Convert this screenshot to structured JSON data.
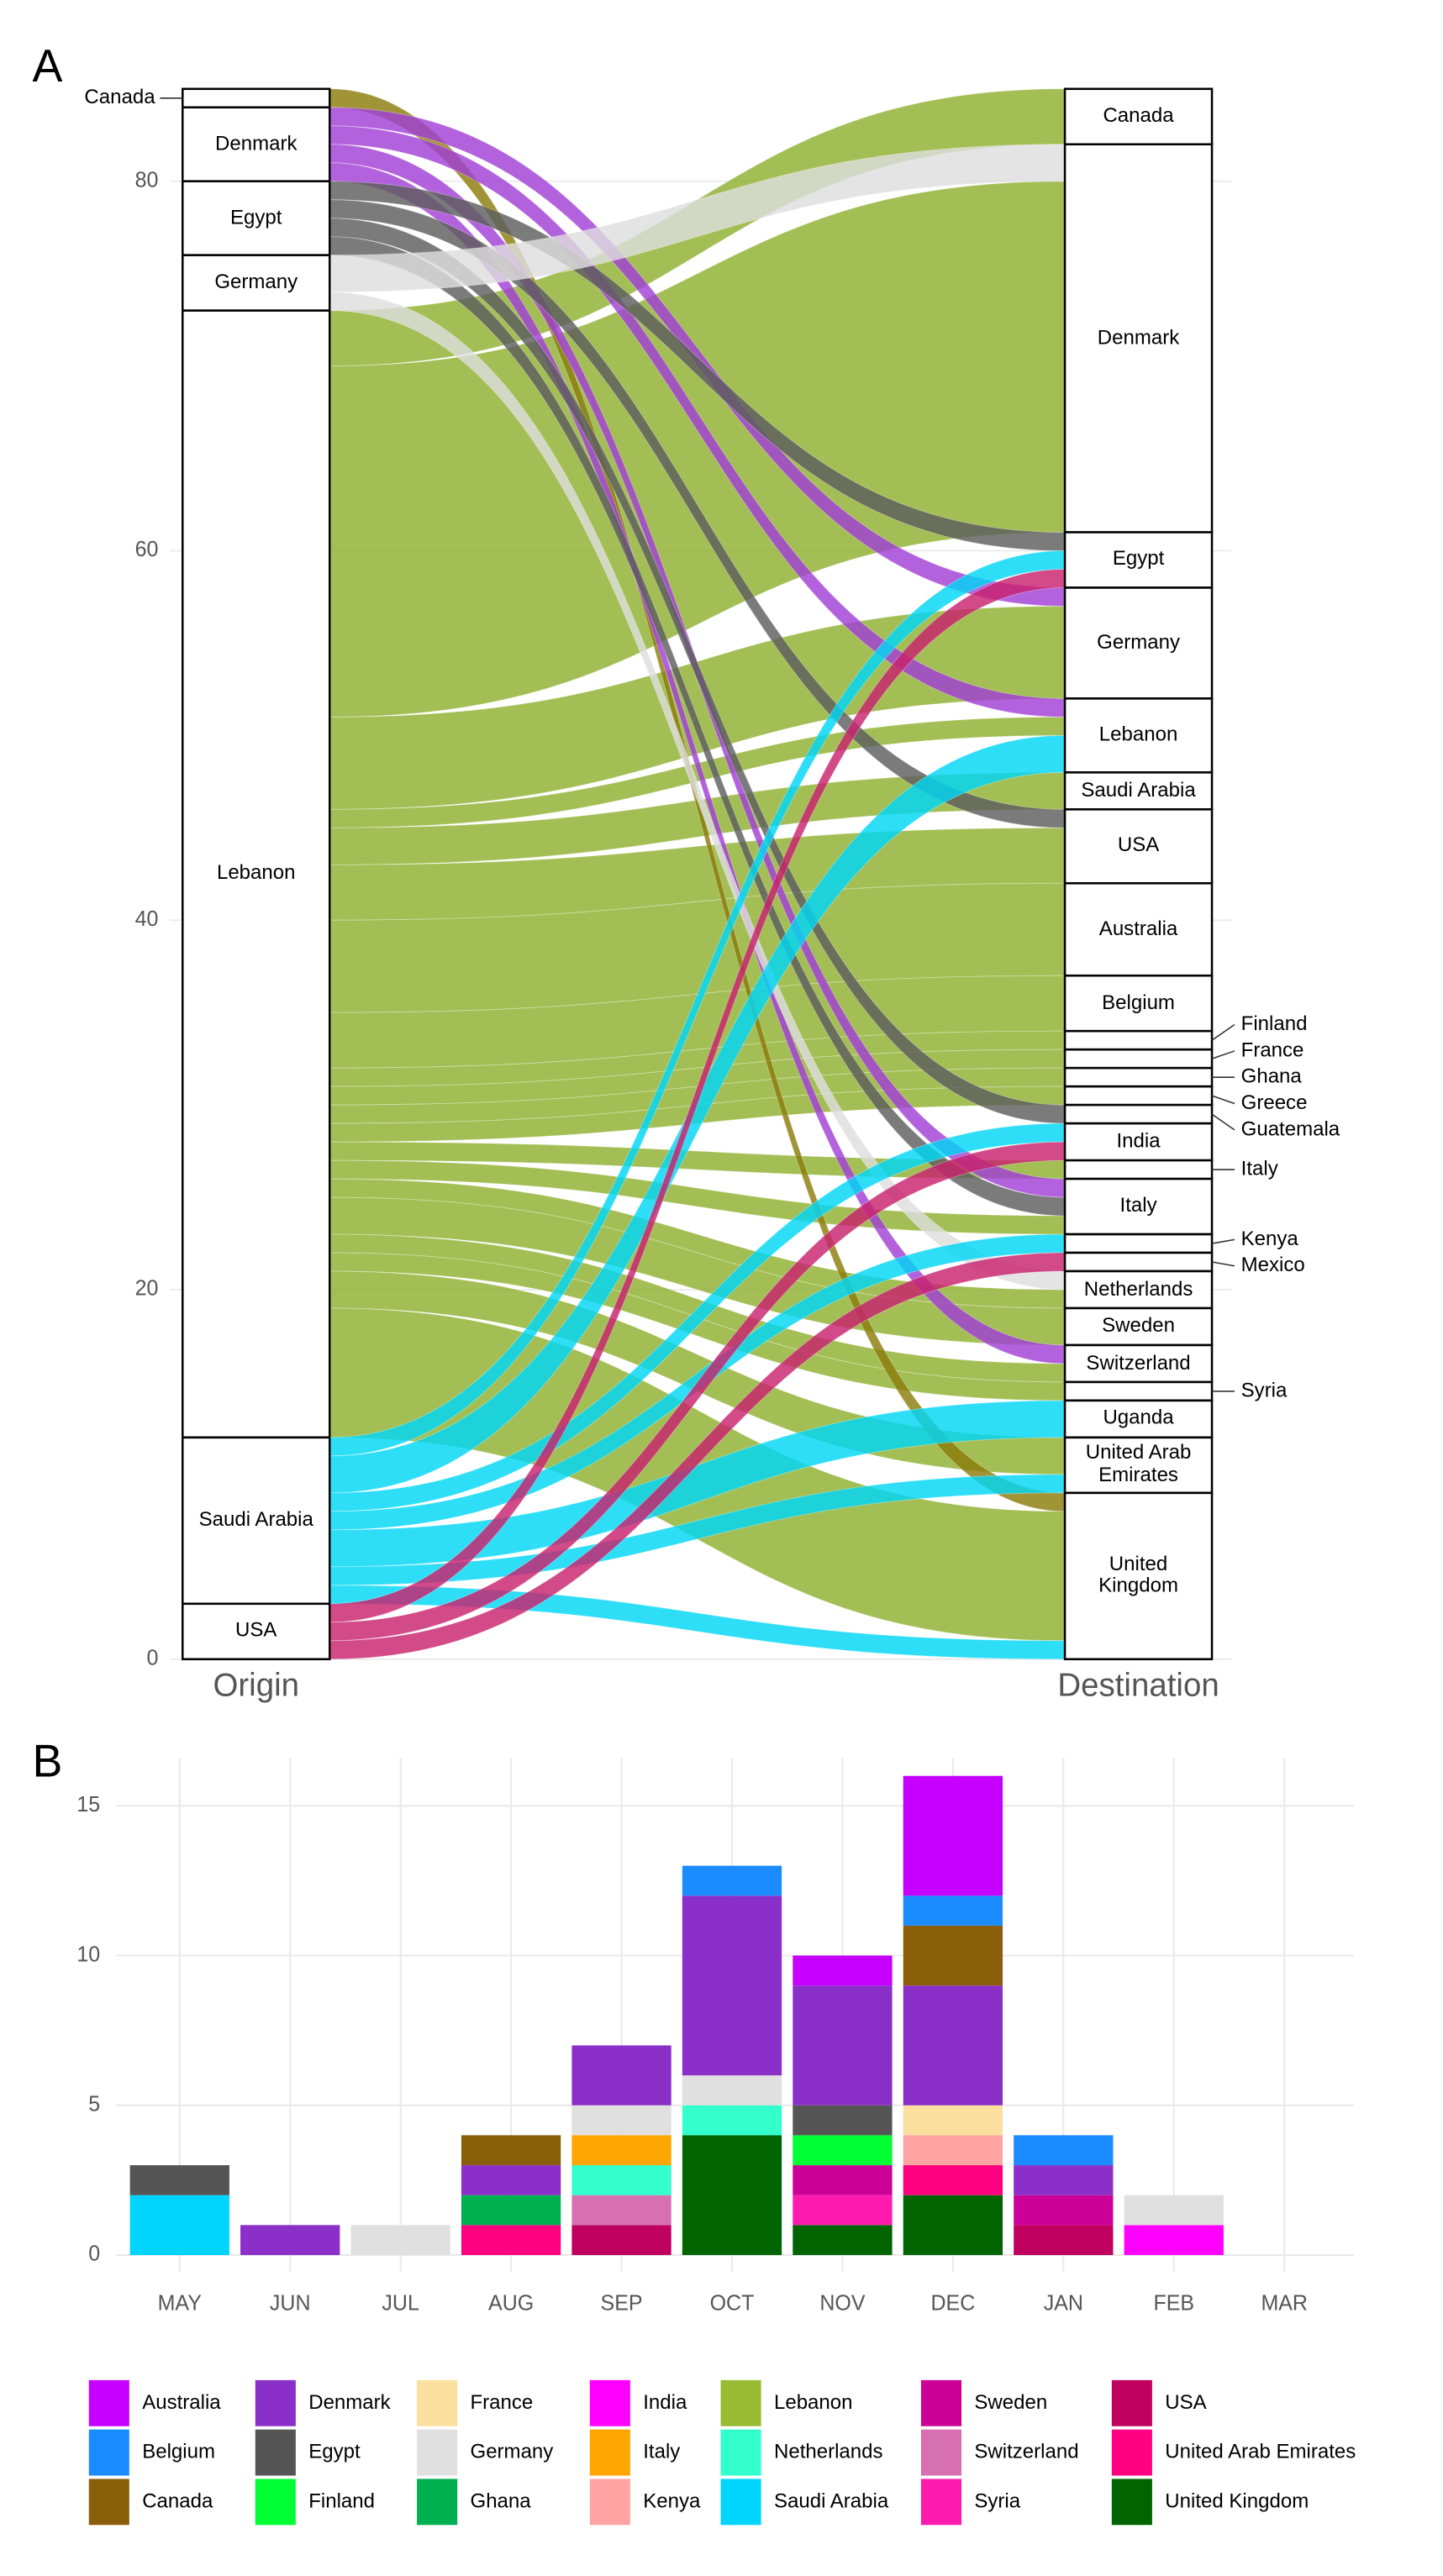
{
  "chart_data": [
    {
      "type": "alluvial",
      "panel": "A",
      "origin_label": "Origin",
      "destination_label": "Destination",
      "ylim": [
        0,
        85
      ],
      "yticks": [
        0,
        20,
        40,
        60,
        80
      ],
      "grid": true,
      "origin": [
        {
          "name": "Canada",
          "count": 1,
          "color": "#8b7d0b"
        },
        {
          "name": "Denmark",
          "count": 4,
          "color": "#a13fd4"
        },
        {
          "name": "Egypt",
          "count": 4,
          "color": "#5e5e5e"
        },
        {
          "name": "Germany",
          "count": 3,
          "color": "#dedede"
        },
        {
          "name": "Lebanon",
          "count": 61,
          "color": "#8fb02e"
        },
        {
          "name": "Saudi Arabia",
          "count": 9,
          "color": "#00d7f5"
        },
        {
          "name": "USA",
          "count": 3,
          "color": "#c8226e"
        }
      ],
      "destination": [
        {
          "name": "Canada",
          "count": 3
        },
        {
          "name": "Denmark",
          "count": 21
        },
        {
          "name": "Egypt",
          "count": 3
        },
        {
          "name": "Germany",
          "count": 6
        },
        {
          "name": "Lebanon",
          "count": 4
        },
        {
          "name": "Saudi Arabia",
          "count": 2
        },
        {
          "name": "USA",
          "count": 4
        },
        {
          "name": "Australia",
          "count": 5
        },
        {
          "name": "Belgium",
          "count": 3
        },
        {
          "name": "Finland",
          "count": 1
        },
        {
          "name": "France",
          "count": 1
        },
        {
          "name": "Ghana",
          "count": 1
        },
        {
          "name": "Greece",
          "count": 1
        },
        {
          "name": "Guatemala",
          "count": 1
        },
        {
          "name": "India",
          "count": 2
        },
        {
          "name": "Italy",
          "count": 1
        },
        {
          "name": "Italy",
          "count": 3
        },
        {
          "name": "Kenya",
          "count": 1
        },
        {
          "name": "Mexico",
          "count": 1
        },
        {
          "name": "Netherlands",
          "count": 2
        },
        {
          "name": "Sweden",
          "count": 2
        },
        {
          "name": "Switzerland",
          "count": 2
        },
        {
          "name": "Syria",
          "count": 1
        },
        {
          "name": "Uganda",
          "count": 2
        },
        {
          "name": "United Arab Emirates",
          "count": 3
        },
        {
          "name": "United Kingdom",
          "count": 9
        }
      ],
      "flows": [
        {
          "from": 0,
          "to": 25,
          "value": 1
        },
        {
          "from": 1,
          "to": 3,
          "value": 1
        },
        {
          "from": 1,
          "to": 4,
          "value": 1
        },
        {
          "from": 1,
          "to": 16,
          "value": 1
        },
        {
          "from": 1,
          "to": 21,
          "value": 1
        },
        {
          "from": 2,
          "to": 2,
          "value": 1
        },
        {
          "from": 2,
          "to": 6,
          "value": 1
        },
        {
          "from": 2,
          "to": 13,
          "value": 1
        },
        {
          "from": 2,
          "to": 16,
          "value": 1
        },
        {
          "from": 3,
          "to": 1,
          "value": 2
        },
        {
          "from": 3,
          "to": 19,
          "value": 1
        },
        {
          "from": 4,
          "to": 0,
          "value": 3
        },
        {
          "from": 4,
          "to": 1,
          "value": 19
        },
        {
          "from": 4,
          "to": 3,
          "value": 5
        },
        {
          "from": 4,
          "to": 4,
          "value": 1
        },
        {
          "from": 4,
          "to": 5,
          "value": 2
        },
        {
          "from": 4,
          "to": 6,
          "value": 3
        },
        {
          "from": 4,
          "to": 7,
          "value": 5
        },
        {
          "from": 4,
          "to": 8,
          "value": 3
        },
        {
          "from": 4,
          "to": 9,
          "value": 1
        },
        {
          "from": 4,
          "to": 10,
          "value": 1
        },
        {
          "from": 4,
          "to": 11,
          "value": 1
        },
        {
          "from": 4,
          "to": 12,
          "value": 1
        },
        {
          "from": 4,
          "to": 15,
          "value": 1
        },
        {
          "from": 4,
          "to": 16,
          "value": 1
        },
        {
          "from": 4,
          "to": 19,
          "value": 1
        },
        {
          "from": 4,
          "to": 20,
          "value": 2
        },
        {
          "from": 4,
          "to": 21,
          "value": 1
        },
        {
          "from": 4,
          "to": 22,
          "value": 1
        },
        {
          "from": 4,
          "to": 24,
          "value": 2
        },
        {
          "from": 4,
          "to": 25,
          "value": 7
        },
        {
          "from": 5,
          "to": 2,
          "value": 1
        },
        {
          "from": 5,
          "to": 4,
          "value": 2
        },
        {
          "from": 5,
          "to": 14,
          "value": 1
        },
        {
          "from": 5,
          "to": 17,
          "value": 1
        },
        {
          "from": 5,
          "to": 23,
          "value": 2
        },
        {
          "from": 5,
          "to": 24,
          "value": 1
        },
        {
          "from": 5,
          "to": 25,
          "value": 1
        },
        {
          "from": 6,
          "to": 2,
          "value": 1
        },
        {
          "from": 6,
          "to": 14,
          "value": 1
        },
        {
          "from": 6,
          "to": 18,
          "value": 1
        }
      ]
    },
    {
      "type": "bar",
      "stacked": true,
      "panel": "B",
      "categories": [
        "MAY",
        "JUN",
        "JUL",
        "AUG",
        "SEP",
        "OCT",
        "NOV",
        "DEC",
        "JAN",
        "FEB",
        "MAR"
      ],
      "ylim": [
        0,
        16.6
      ],
      "yticks": [
        0,
        5,
        10,
        15
      ],
      "grid": true,
      "legend": "bottom",
      "series": [
        {
          "name": "Australia",
          "color": "#c600ff",
          "values": [
            0,
            0,
            0,
            0,
            0,
            0,
            1,
            4,
            0,
            0,
            0
          ]
        },
        {
          "name": "Belgium",
          "color": "#1a8cff",
          "values": [
            0,
            0,
            0,
            0,
            0,
            1,
            0,
            1,
            1,
            0,
            0
          ]
        },
        {
          "name": "Canada",
          "color": "#8b5e0a",
          "values": [
            0,
            0,
            0,
            1,
            0,
            0,
            0,
            2,
            0,
            0,
            0
          ]
        },
        {
          "name": "Denmark",
          "color": "#8b2fc9",
          "values": [
            0,
            1,
            0,
            1,
            2,
            6,
            4,
            4,
            1,
            0,
            0
          ]
        },
        {
          "name": "Egypt",
          "color": "#555555",
          "values": [
            1,
            0,
            0,
            0,
            0,
            0,
            1,
            0,
            0,
            0,
            0
          ]
        },
        {
          "name": "Finland",
          "color": "#00ff33",
          "values": [
            0,
            0,
            0,
            0,
            0,
            0,
            1,
            0,
            0,
            0,
            0
          ]
        },
        {
          "name": "France",
          "color": "#fbdf9f",
          "values": [
            0,
            0,
            0,
            0,
            0,
            0,
            0,
            1,
            0,
            0,
            0
          ]
        },
        {
          "name": "Germany",
          "color": "#e0e0e0",
          "values": [
            0,
            0,
            1,
            0,
            1,
            1,
            0,
            0,
            0,
            1,
            0
          ]
        },
        {
          "name": "Ghana",
          "color": "#00b050",
          "values": [
            0,
            0,
            0,
            1,
            0,
            0,
            0,
            0,
            0,
            0,
            0
          ]
        },
        {
          "name": "India",
          "color": "#ff00ff",
          "values": [
            0,
            0,
            0,
            0,
            0,
            0,
            0,
            0,
            0,
            1,
            0
          ]
        },
        {
          "name": "Italy",
          "color": "#ffa500",
          "values": [
            0,
            0,
            0,
            0,
            1,
            0,
            0,
            0,
            0,
            0,
            0
          ]
        },
        {
          "name": "Kenya",
          "color": "#ffa3a3",
          "values": [
            0,
            0,
            0,
            0,
            0,
            0,
            0,
            1,
            0,
            0,
            0
          ]
        },
        {
          "name": "Lebanon",
          "color": "#99bb33",
          "values": [
            0,
            0,
            0,
            0,
            0,
            0,
            0,
            0,
            0,
            0,
            0
          ]
        },
        {
          "name": "Netherlands",
          "color": "#33ffcc",
          "values": [
            0,
            0,
            0,
            0,
            1,
            1,
            0,
            0,
            0,
            0,
            0
          ]
        },
        {
          "name": "Saudi Arabia",
          "color": "#00d4ff",
          "values": [
            2,
            0,
            0,
            0,
            0,
            0,
            0,
            0,
            0,
            0,
            0
          ]
        },
        {
          "name": "Sweden",
          "color": "#cc0099",
          "values": [
            0,
            0,
            0,
            0,
            0,
            0,
            1,
            0,
            1,
            0,
            0
          ]
        },
        {
          "name": "Switzerland",
          "color": "#d670b0",
          "values": [
            0,
            0,
            0,
            0,
            1,
            0,
            0,
            0,
            0,
            0,
            0
          ]
        },
        {
          "name": "Syria",
          "color": "#ff1aae",
          "values": [
            0,
            0,
            0,
            0,
            0,
            0,
            1,
            0,
            0,
            0,
            0
          ]
        },
        {
          "name": "USA",
          "color": "#c0005f",
          "values": [
            0,
            0,
            0,
            0,
            1,
            0,
            0,
            0,
            1,
            0,
            0
          ]
        },
        {
          "name": "United Arab Emirates",
          "color": "#ff0080",
          "values": [
            0,
            0,
            0,
            1,
            0,
            0,
            0,
            1,
            0,
            0,
            0
          ]
        },
        {
          "name": "United Kingdom",
          "color": "#006400",
          "values": [
            0,
            0,
            0,
            0,
            0,
            4,
            1,
            2,
            0,
            0,
            0
          ]
        }
      ]
    }
  ]
}
